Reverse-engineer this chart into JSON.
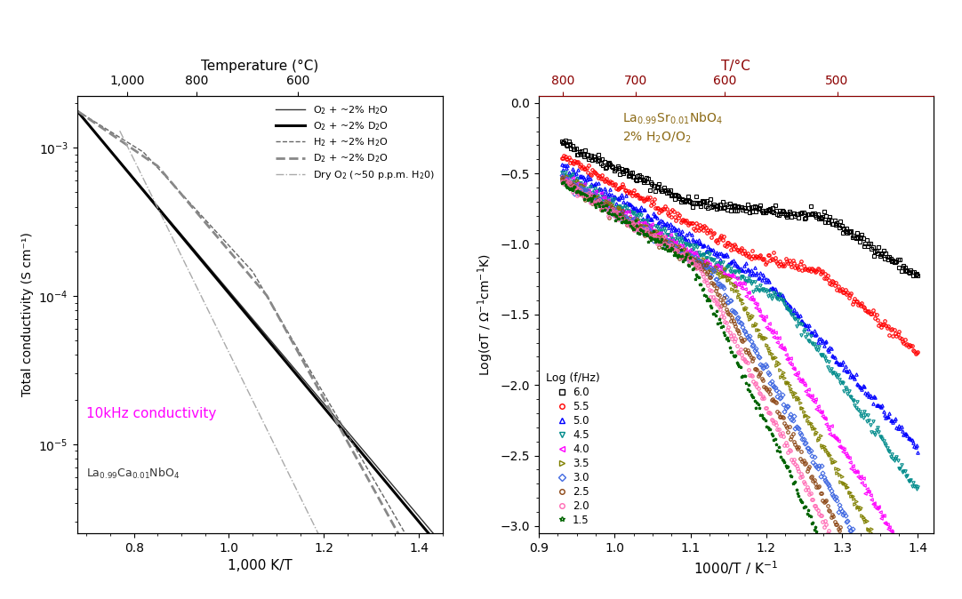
{
  "left_panel": {
    "top_axis_label": "Temperature (°C)",
    "xlabel": "1,000 K/T",
    "ylabel": "Total conductivity (S cm⁻¹)",
    "xlim": [
      0.68,
      1.45
    ],
    "ylim_low": -5.6,
    "ylim_high": -2.65,
    "annotation_color": "#FF00FF",
    "annotation_text": "10kHz conductivity",
    "formula_text": "La$_{0.99}$Ca$_{0.01}$NbO$_4$"
  },
  "right_panel": {
    "xlabel": "1000/T / K$^{-1}$",
    "ylabel": "Log(σT / Ω$^{-1}$cm$^{-1}$K)",
    "top_xlabel": "T/°C",
    "xlim": [
      0.9,
      1.42
    ],
    "ylim": [
      -3.05,
      0.05
    ],
    "annotation_color": "#8B6914",
    "top_axis_color": "#8B0000",
    "series_colors": [
      "#000000",
      "#FF0000",
      "#0000FF",
      "#008B8B",
      "#FF00FF",
      "#808000",
      "#4169E1",
      "#8B4513",
      "#FF69B4",
      "#006400"
    ],
    "series_markers": [
      "s",
      "o",
      "^",
      "v",
      "<",
      ">",
      "D",
      "o",
      "o",
      "*"
    ],
    "series_labels": [
      "6.0",
      "5.5",
      "5.0",
      "4.5",
      "4.0",
      "3.5",
      "3.0",
      "2.5",
      "2.0",
      "1.5"
    ],
    "series_freqs": [
      6.0,
      5.5,
      5.0,
      4.5,
      4.0,
      3.5,
      3.0,
      2.5,
      2.0,
      1.5
    ]
  }
}
